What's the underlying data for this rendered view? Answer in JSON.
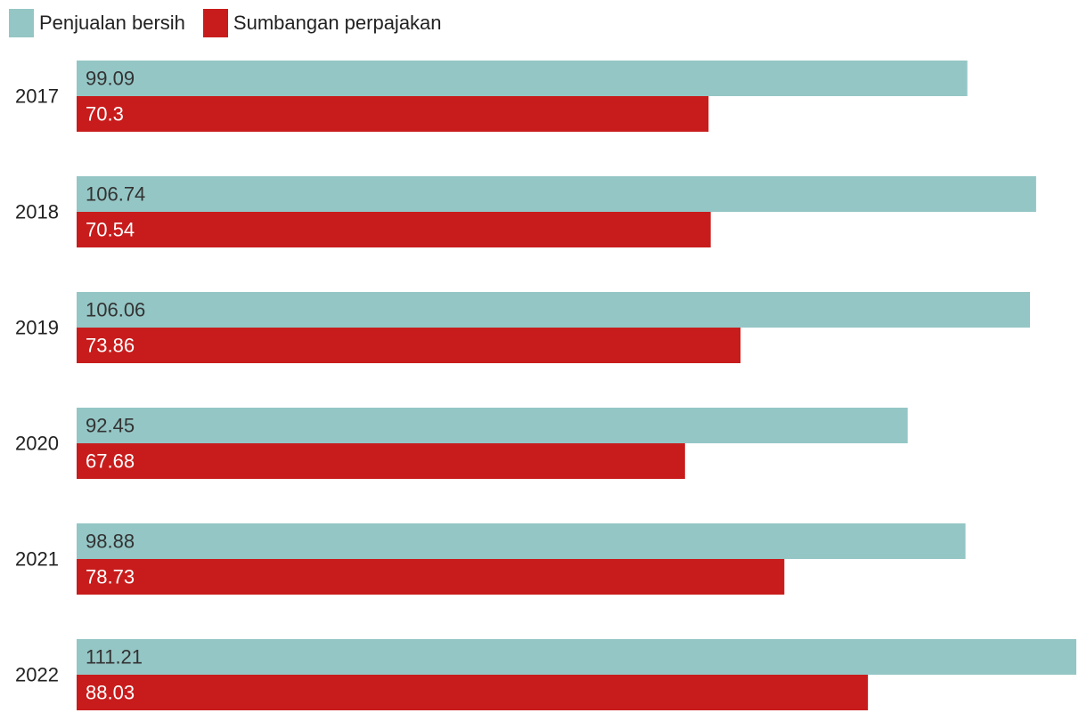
{
  "legend": {
    "items": [
      {
        "label": "Penjualan bersih",
        "color": "#94c6c5"
      },
      {
        "label": "Sumbangan perpajakan",
        "color": "#c81c1c"
      }
    ]
  },
  "chart_data": {
    "type": "bar",
    "orientation": "horizontal",
    "categories": [
      "2017",
      "2018",
      "2019",
      "2020",
      "2021",
      "2022"
    ],
    "series": [
      {
        "name": "Penjualan bersih",
        "color": "#94c6c5",
        "label_color": "#333333",
        "values": [
          99.09,
          106.74,
          106.06,
          92.45,
          98.88,
          111.21
        ],
        "labels": [
          "99.09",
          "106.74",
          "106.06",
          "92.45",
          "98.88",
          "111.21"
        ]
      },
      {
        "name": "Sumbangan perpajakan",
        "color": "#c81c1c",
        "label_color": "#ffffff",
        "values": [
          70.3,
          70.54,
          73.86,
          67.68,
          78.73,
          88.03
        ],
        "labels": [
          "70.3",
          "70.54",
          "73.86",
          "67.68",
          "78.73",
          "88.03"
        ]
      }
    ],
    "xlim": [
      0,
      111.21
    ],
    "grid": false,
    "legend_position": "top-left",
    "data_labels": "inside-start"
  }
}
